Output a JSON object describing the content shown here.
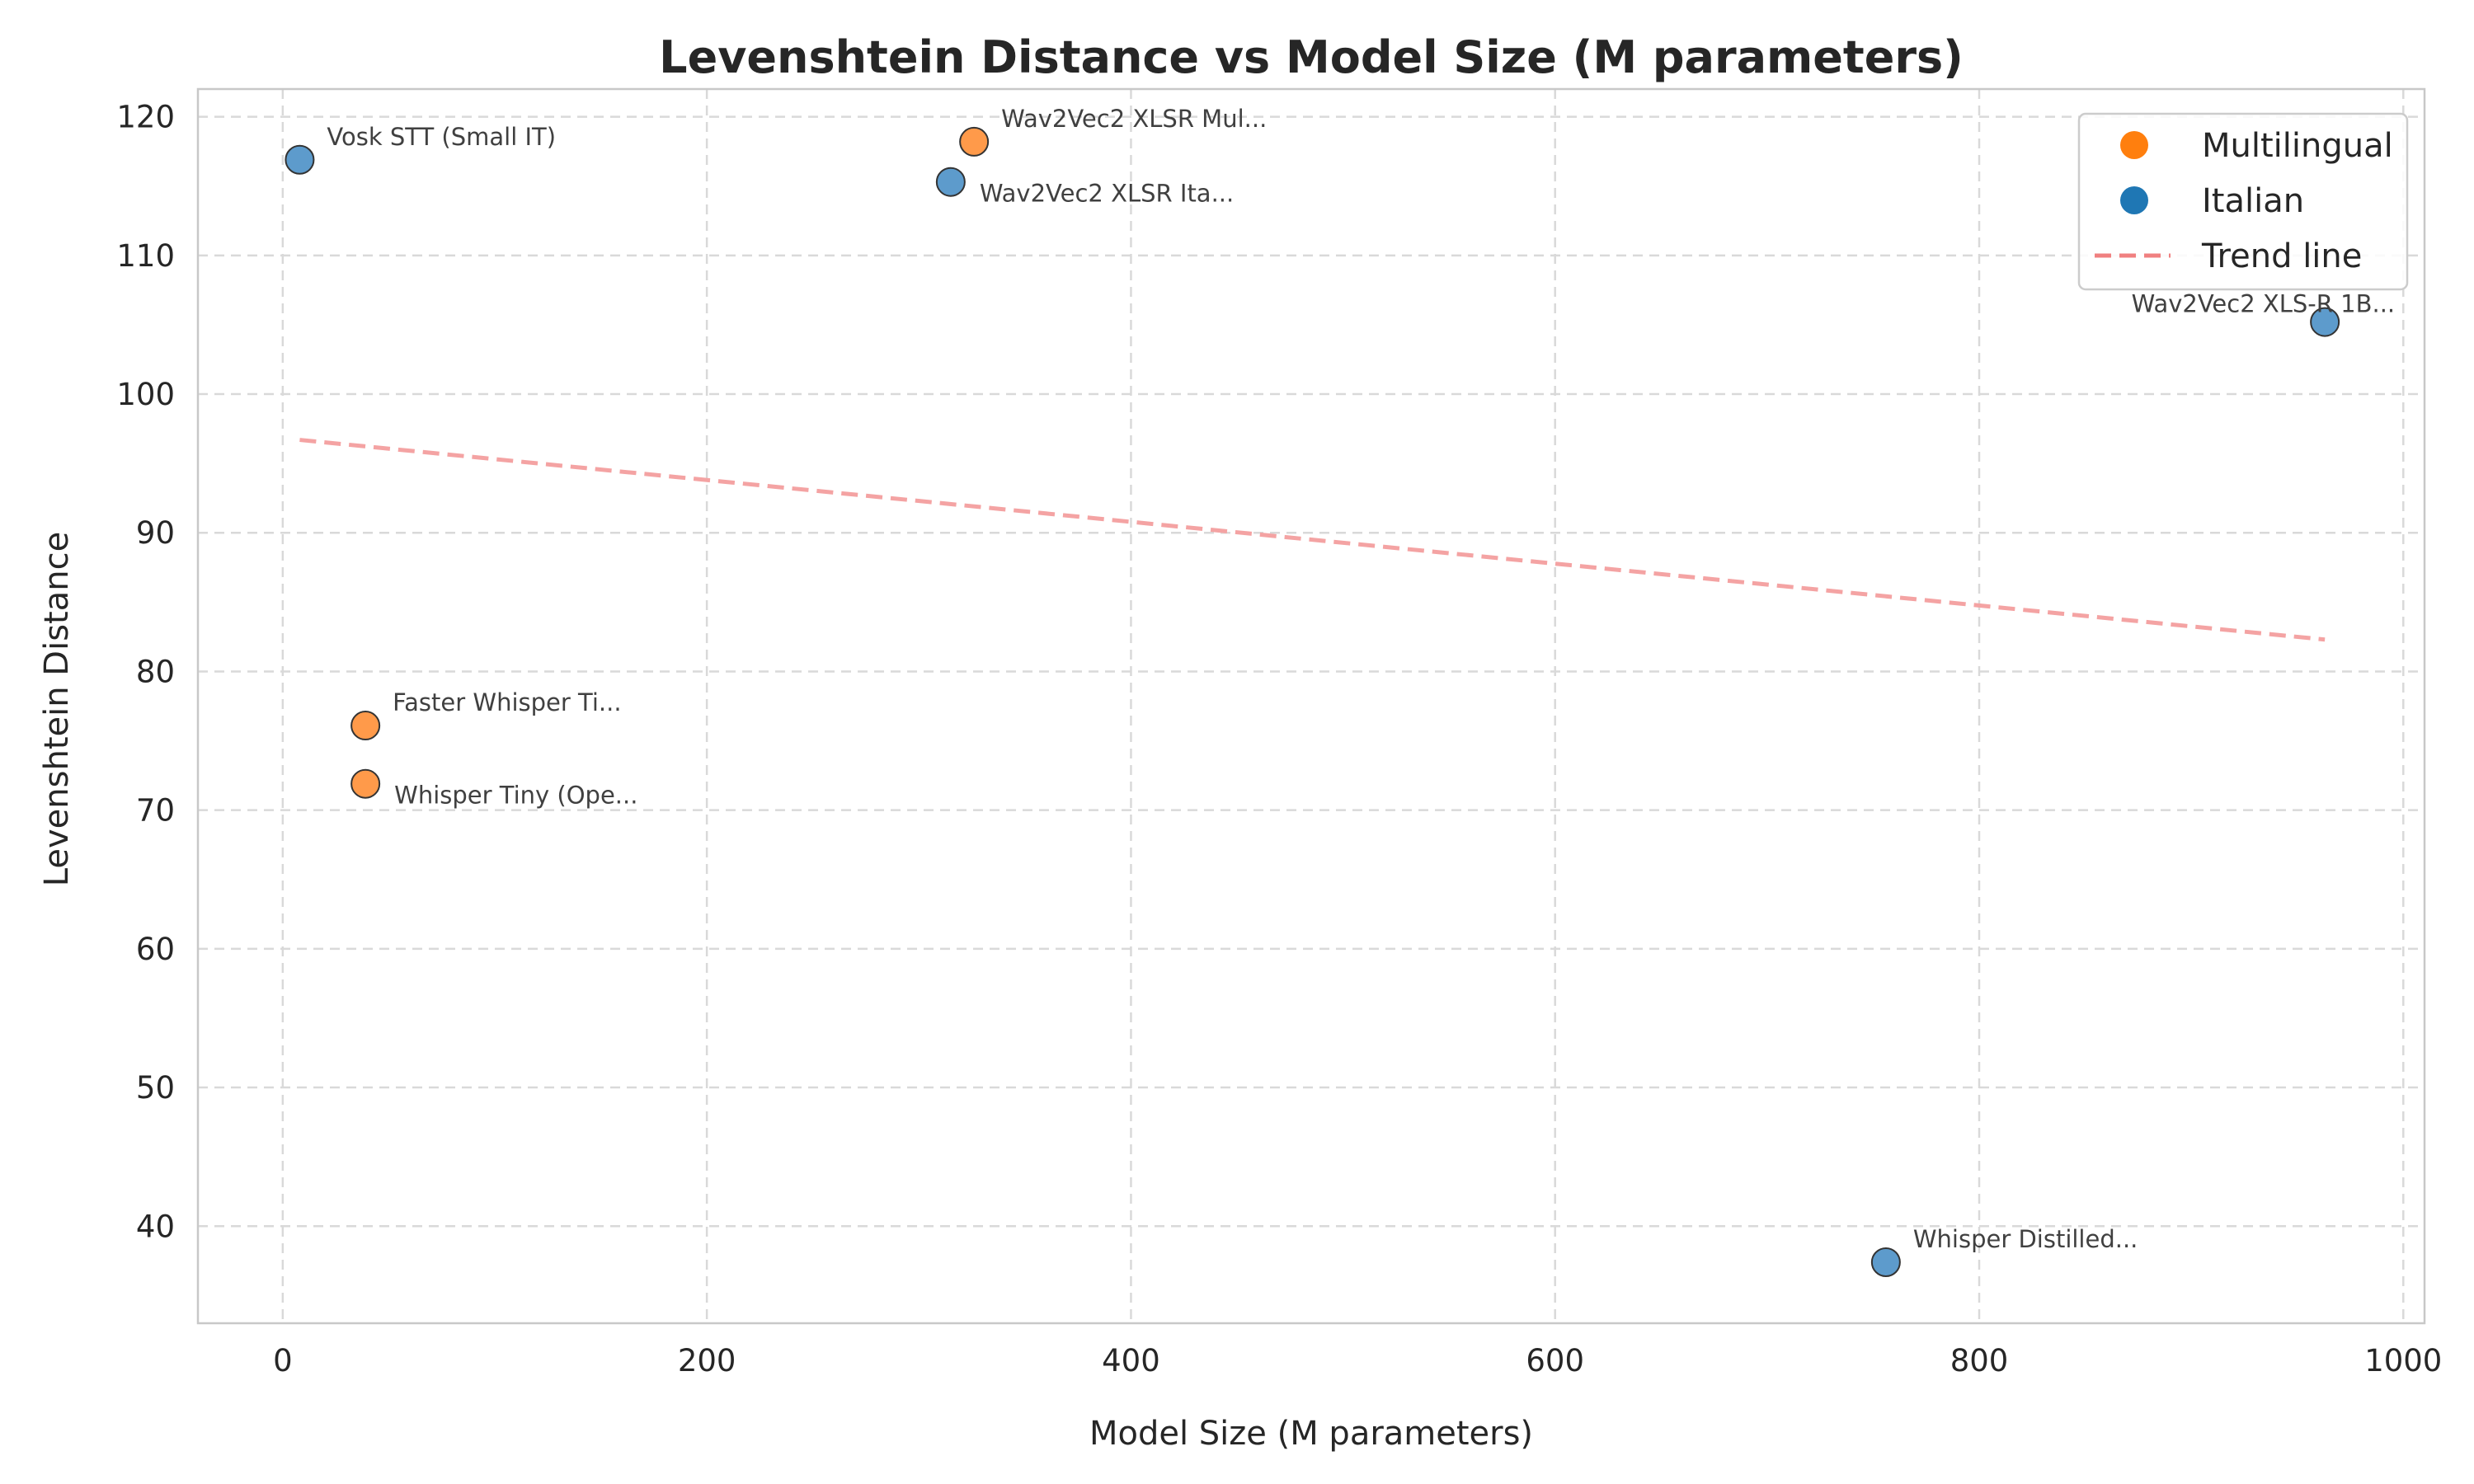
{
  "chart_data": {
    "type": "scatter",
    "title": "Levenshtein Distance vs Model Size (M parameters)",
    "xlabel": "Model Size (M parameters)",
    "ylabel": "Levenshtein Distance",
    "xlim": [
      -40,
      1010
    ],
    "ylim": [
      33,
      122
    ],
    "xticks": [
      0,
      200,
      400,
      600,
      800,
      1000
    ],
    "yticks": [
      40,
      50,
      60,
      70,
      80,
      90,
      100,
      110,
      120
    ],
    "grid": true,
    "legend_position": "top-right",
    "legend": [
      {
        "label": "Multilingual",
        "kind": "marker",
        "color": "#ff7f0e"
      },
      {
        "label": "Italian",
        "kind": "marker",
        "color": "#1f77b4"
      },
      {
        "label": "Trend line",
        "kind": "dashed-line",
        "color": "#f08080"
      }
    ],
    "series": [
      {
        "name": "Multilingual",
        "color": "#ff9a4a",
        "points": [
          {
            "x": 326,
            "y": 118.2,
            "label": "Wav2Vec2 XLSR Mul...",
            "anchor": "above-right"
          },
          {
            "x": 39,
            "y": 76.1,
            "label": "Faster Whisper Ti...",
            "anchor": "above-right"
          },
          {
            "x": 39,
            "y": 71.9,
            "label": "Whisper Tiny (Ope...",
            "anchor": "below-right"
          }
        ]
      },
      {
        "name": "Italian",
        "color": "#5d9bcc",
        "points": [
          {
            "x": 8,
            "y": 116.9,
            "label": "Vosk STT (Small IT)",
            "anchor": "above-right"
          },
          {
            "x": 315,
            "y": 115.3,
            "label": "Wav2Vec2 XLSR Ita...",
            "anchor": "below-right"
          },
          {
            "x": 963,
            "y": 105.2,
            "label": "Wav2Vec2 XLS-R 1B...",
            "anchor": "above-left"
          },
          {
            "x": 756,
            "y": 37.4,
            "label": "Whisper Distilled...",
            "anchor": "above-right"
          }
        ]
      }
    ],
    "trend_line": {
      "x": [
        8,
        963
      ],
      "y": [
        96.7,
        82.3
      ]
    }
  }
}
